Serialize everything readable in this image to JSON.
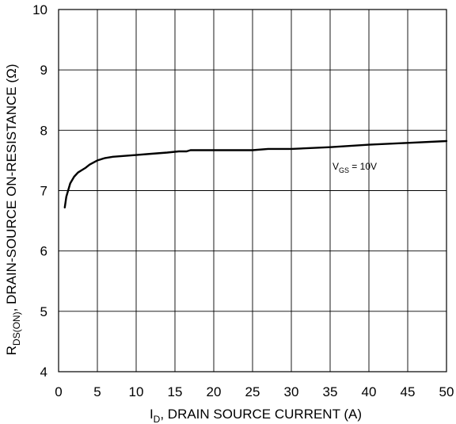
{
  "chart_data": {
    "type": "line",
    "xlabel": {
      "main": "I",
      "sub": "D",
      "rest": ", DRAIN SOURCE CURRENT (A)"
    },
    "ylabel": {
      "main": "R",
      "sub": "DS(ON)",
      "rest": ", DRAIN-SOURCE ON-RESISTANCE (Ω)"
    },
    "xlim": [
      0,
      50
    ],
    "ylim": [
      4,
      10
    ],
    "xticks": [
      0,
      5,
      10,
      15,
      20,
      25,
      30,
      35,
      40,
      45,
      50
    ],
    "yticks": [
      4,
      5,
      6,
      7,
      8,
      9,
      10
    ],
    "grid": true,
    "annotation": {
      "main": "V",
      "sub": "GS",
      "rest": " = 10V"
    },
    "series": [
      {
        "x": [
          0.8,
          1.0,
          1.5,
          2.0,
          2.5,
          3.0,
          3.5,
          4.0,
          5.0,
          6.0,
          7.0,
          8.0,
          10.0,
          12.0,
          14.0,
          15.5,
          16.5,
          17.0,
          20.0,
          22.0,
          25.0,
          27.0,
          30.0,
          35.0,
          40.0,
          45.0,
          50.0
        ],
        "y": [
          6.72,
          6.9,
          7.12,
          7.23,
          7.3,
          7.34,
          7.38,
          7.43,
          7.5,
          7.54,
          7.56,
          7.57,
          7.59,
          7.61,
          7.63,
          7.65,
          7.65,
          7.67,
          7.67,
          7.67,
          7.67,
          7.69,
          7.69,
          7.72,
          7.76,
          7.79,
          7.82
        ]
      }
    ]
  }
}
